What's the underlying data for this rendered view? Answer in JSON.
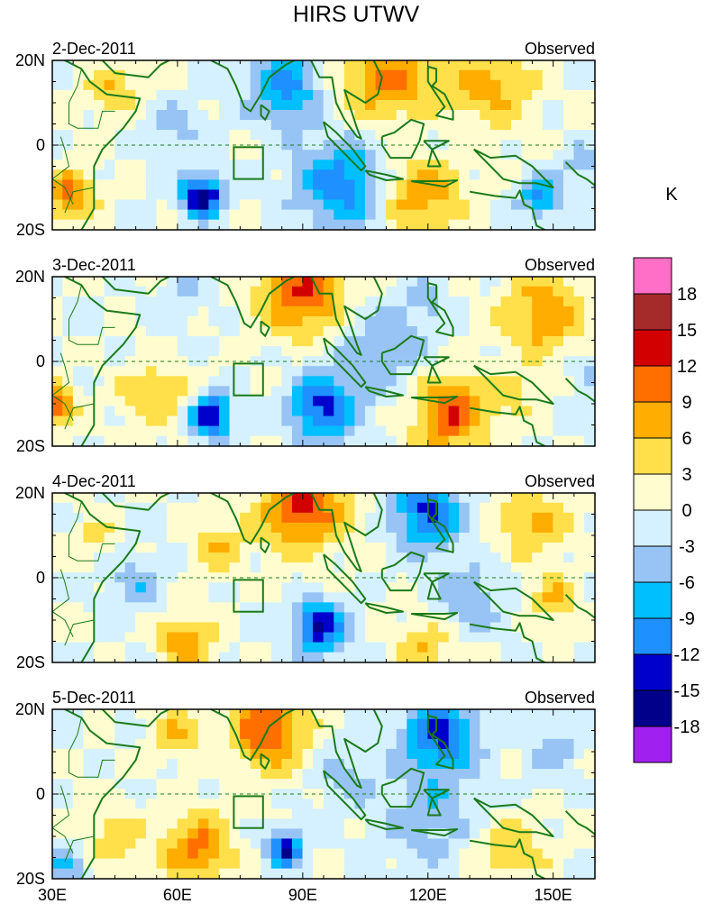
{
  "chart_data": {
    "type": "heatmap",
    "title": "HIRS UTWV",
    "colorbar": {
      "unit": "K",
      "colors": [
        "#a020f0",
        "#00008b",
        "#0000cd",
        "#1e90ff",
        "#00bfff",
        "#97c4f5",
        "#d5f1ff",
        "#fffdd0",
        "#ffe04a",
        "#ffad00",
        "#ff6f00",
        "#d20000",
        "#a52a2a",
        "#ff6ec7"
      ],
      "tick_labels": [
        "-18",
        "-15",
        "-12",
        "-9",
        "-6",
        "-3",
        "0",
        "3",
        "6",
        "9",
        "12",
        "15",
        "18"
      ]
    },
    "x_axis": {
      "range": [
        30,
        160
      ],
      "ticks": [
        30,
        60,
        90,
        120,
        150
      ],
      "tick_labels": [
        "30E",
        "60E",
        "90E",
        "120E",
        "150E"
      ]
    },
    "y_axis": {
      "range": [
        -20,
        20
      ],
      "ticks": [
        20,
        0,
        -20
      ],
      "tick_labels": [
        "20N",
        "0",
        "20S"
      ]
    },
    "panels": [
      {
        "date_label": "2-Dec-2011",
        "tag": "Observed",
        "base": 0,
        "blobs": [
          {
            "lon": 86,
            "lat": 14,
            "r": 9,
            "v": -10
          },
          {
            "lon": 100,
            "lat": -9,
            "r": 11,
            "v": -11
          },
          {
            "lon": 66,
            "lat": -12,
            "r": 5,
            "v": -17
          },
          {
            "lon": 110,
            "lat": 16,
            "r": 12,
            "v": 9
          },
          {
            "lon": 135,
            "lat": 14,
            "r": 10,
            "v": 7
          },
          {
            "lon": 118,
            "lat": -11,
            "r": 10,
            "v": 9
          },
          {
            "lon": 34,
            "lat": -12,
            "r": 6,
            "v": 10
          },
          {
            "lon": 147,
            "lat": -12,
            "r": 5,
            "v": -10
          },
          {
            "lon": 45,
            "lat": 13,
            "r": 6,
            "v": 6
          },
          {
            "lon": 120,
            "lat": 1,
            "r": 8,
            "v": -2
          },
          {
            "lon": 157,
            "lat": -5,
            "r": 5,
            "v": -5
          },
          {
            "lon": 60,
            "lat": 4,
            "r": 7,
            "v": -4
          }
        ]
      },
      {
        "date_label": "3-Dec-2011",
        "tag": "Observed",
        "base": 0,
        "blobs": [
          {
            "lon": 90,
            "lat": 16,
            "r": 10,
            "v": 12
          },
          {
            "lon": 148,
            "lat": 11,
            "r": 10,
            "v": 8
          },
          {
            "lon": 125,
            "lat": -12,
            "r": 9,
            "v": 12
          },
          {
            "lon": 30,
            "lat": -10,
            "r": 5,
            "v": 12
          },
          {
            "lon": 68,
            "lat": -13,
            "r": 5,
            "v": -16
          },
          {
            "lon": 95,
            "lat": -11,
            "r": 8,
            "v": -13
          },
          {
            "lon": 110,
            "lat": 3,
            "r": 12,
            "v": -5
          },
          {
            "lon": 55,
            "lat": -8,
            "r": 8,
            "v": 6
          },
          {
            "lon": 120,
            "lat": 14,
            "r": 6,
            "v": -3
          },
          {
            "lon": 140,
            "lat": -8,
            "r": 6,
            "v": 4
          },
          {
            "lon": 62,
            "lat": 16,
            "r": 6,
            "v": -3
          },
          {
            "lon": 158,
            "lat": -4,
            "r": 5,
            "v": -4
          }
        ]
      },
      {
        "date_label": "4-Dec-2011",
        "tag": "Observed",
        "base": 0,
        "blobs": [
          {
            "lon": 90,
            "lat": 17,
            "r": 10,
            "v": 13
          },
          {
            "lon": 120,
            "lat": 15,
            "r": 8,
            "v": -13
          },
          {
            "lon": 94,
            "lat": -12,
            "r": 6,
            "v": -15
          },
          {
            "lon": 145,
            "lat": 13,
            "r": 8,
            "v": 7
          },
          {
            "lon": 150,
            "lat": -5,
            "r": 6,
            "v": 6
          },
          {
            "lon": 62,
            "lat": -15,
            "r": 7,
            "v": 8
          },
          {
            "lon": 130,
            "lat": -5,
            "r": 9,
            "v": -5
          },
          {
            "lon": 50,
            "lat": -2,
            "r": 7,
            "v": -5
          },
          {
            "lon": 120,
            "lat": -16,
            "r": 7,
            "v": 6
          },
          {
            "lon": 70,
            "lat": 8,
            "r": 6,
            "v": 6
          },
          {
            "lon": 40,
            "lat": 10,
            "r": 5,
            "v": 4
          }
        ]
      },
      {
        "date_label": "5-Dec-2011",
        "tag": "Observed",
        "base": 0,
        "blobs": [
          {
            "lon": 82,
            "lat": 15,
            "r": 9,
            "v": 12
          },
          {
            "lon": 123,
            "lat": 14,
            "r": 9,
            "v": -12
          },
          {
            "lon": 86,
            "lat": -13,
            "r": 4,
            "v": -16
          },
          {
            "lon": 65,
            "lat": -13,
            "r": 8,
            "v": 10
          },
          {
            "lon": 120,
            "lat": -5,
            "r": 12,
            "v": -5
          },
          {
            "lon": 150,
            "lat": 10,
            "r": 6,
            "v": -5
          },
          {
            "lon": 45,
            "lat": -10,
            "r": 7,
            "v": 5
          },
          {
            "lon": 60,
            "lat": 14,
            "r": 6,
            "v": 6
          },
          {
            "lon": 140,
            "lat": -13,
            "r": 8,
            "v": 6
          },
          {
            "lon": 100,
            "lat": 5,
            "r": 8,
            "v": -4
          },
          {
            "lon": 33,
            "lat": -17,
            "r": 5,
            "v": -6
          }
        ]
      }
    ]
  }
}
